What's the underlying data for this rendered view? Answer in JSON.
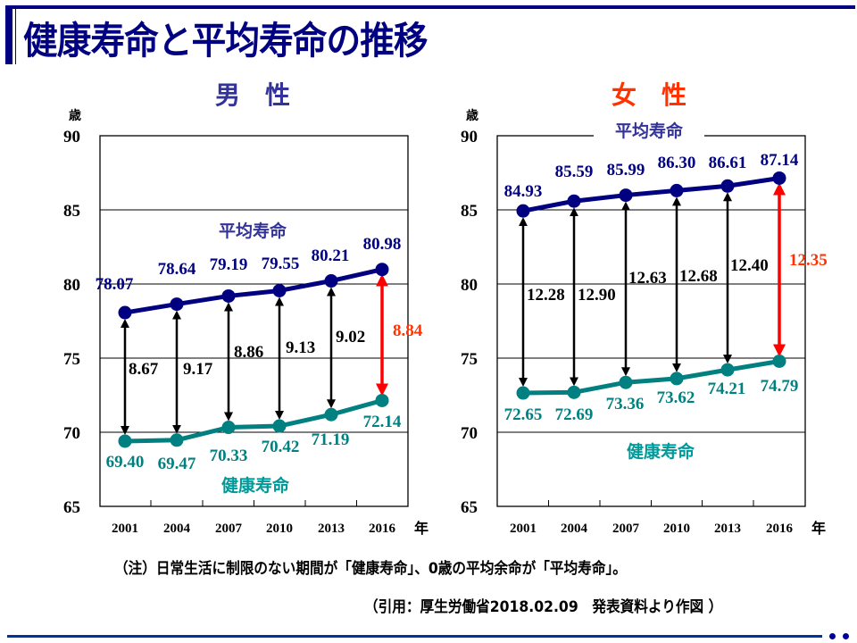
{
  "page": {
    "title": "健康寿命と平均寿命の推移",
    "note": "（注）日常生活に制限のない期間が「健康寿命」、0歳の平均余命が「平均寿命」。",
    "source": "（引用：厚生労働省2018.02.09　発表資料より作図 ）"
  },
  "colors": {
    "heading": "#000080",
    "avg_line": "#000080",
    "healthy_line": "#008080",
    "gap_arrow": "#000000",
    "latest_gap_arrow": "#ff0000",
    "latest_gap_label": "#ff3300",
    "female_title": "#ff3300",
    "male_title": "#333399",
    "series_label_avg": "#333399",
    "series_label_healthy": "#009999"
  },
  "chart_data": [
    {
      "type": "line",
      "title": "男　性",
      "ylabel": "歳",
      "xlabel": "年",
      "ylim": [
        65,
        90
      ],
      "yticks": [
        65,
        70,
        75,
        80,
        85,
        90
      ],
      "grid": true,
      "categories": [
        "2001",
        "2004",
        "2007",
        "2010",
        "2013",
        "2016"
      ],
      "series": [
        {
          "name": "平均寿命",
          "values": [
            78.07,
            78.64,
            79.19,
            79.55,
            80.21,
            80.98
          ],
          "labels": [
            "78.07",
            "78.64",
            "79.19",
            "79.55",
            "80.21",
            "80.98"
          ]
        },
        {
          "name": "健康寿命",
          "values": [
            69.4,
            69.47,
            70.33,
            70.42,
            71.19,
            72.14
          ],
          "labels": [
            "69.40",
            "69.47",
            "70.33",
            "70.42",
            "71.19",
            "72.14"
          ]
        }
      ],
      "gaps": [
        8.67,
        9.17,
        8.86,
        9.13,
        9.02,
        8.84
      ],
      "gap_labels": [
        "8.67",
        "9.17",
        "8.86",
        "9.13",
        "9.02",
        "8.84"
      ],
      "annotations": {
        "avg_series_label": "平均寿命",
        "healthy_series_label": "健康寿命"
      }
    },
    {
      "type": "line",
      "title": "女　性",
      "ylabel": "歳",
      "xlabel": "年",
      "ylim": [
        65,
        90
      ],
      "yticks": [
        65,
        70,
        75,
        80,
        85,
        90
      ],
      "grid": true,
      "categories": [
        "2001",
        "2004",
        "2007",
        "2010",
        "2013",
        "2016"
      ],
      "series": [
        {
          "name": "平均寿命",
          "values": [
            84.93,
            85.59,
            85.99,
            86.3,
            86.61,
            87.14
          ],
          "labels": [
            "84.93",
            "85.59",
            "85.99",
            "86.30",
            "86.61",
            "87.14"
          ]
        },
        {
          "name": "健康寿命",
          "values": [
            72.65,
            72.69,
            73.36,
            73.62,
            74.21,
            74.79
          ],
          "labels": [
            "72.65",
            "72.69",
            "73.36",
            "73.62",
            "74.21",
            "74.79"
          ]
        }
      ],
      "gaps": [
        12.28,
        12.9,
        12.63,
        12.68,
        12.4,
        12.35
      ],
      "gap_labels": [
        "12.28",
        "12.90",
        "12.63",
        "12.68",
        "12.40",
        "12.35"
      ],
      "annotations": {
        "avg_series_label": "平均寿命",
        "healthy_series_label": "健康寿命"
      }
    }
  ]
}
